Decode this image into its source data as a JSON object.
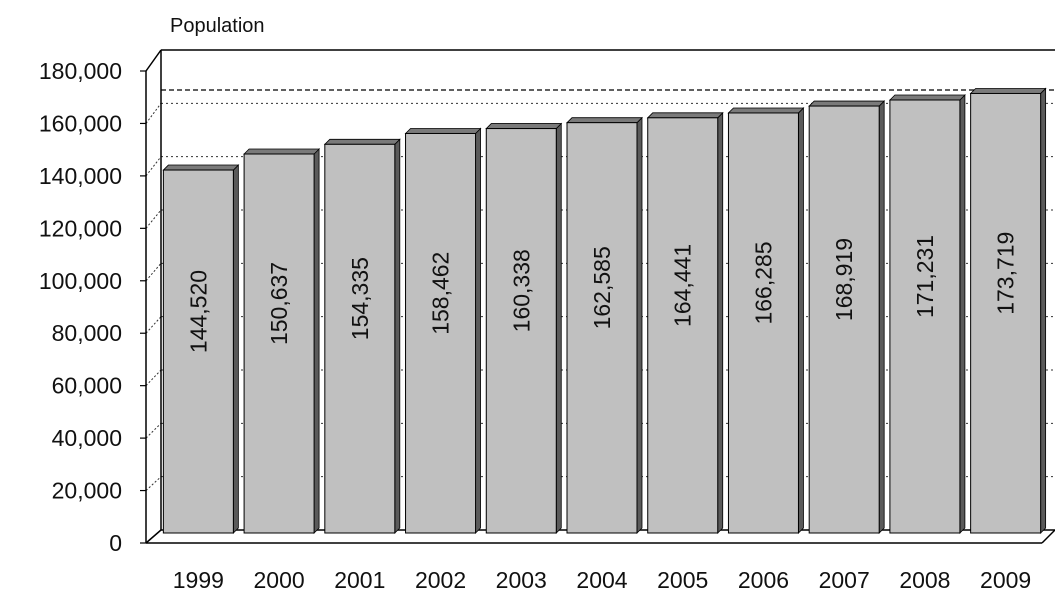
{
  "chart_data": {
    "type": "bar",
    "title": "",
    "xlabel": "",
    "ylabel": "Population",
    "categories": [
      "1999",
      "2000",
      "2001",
      "2002",
      "2003",
      "2004",
      "2005",
      "2006",
      "2007",
      "2008",
      "2009"
    ],
    "values": [
      144520,
      150637,
      154335,
      158462,
      160338,
      162585,
      164441,
      166285,
      168919,
      171231,
      173719
    ],
    "data_labels": [
      "144,520",
      "150,637",
      "154,335",
      "158,462",
      "160,338",
      "162,585",
      "164,441",
      "166,285",
      "168,919",
      "171,231",
      "173,719"
    ],
    "yticks": [
      0,
      20000,
      40000,
      60000,
      80000,
      100000,
      120000,
      140000,
      160000,
      180000
    ],
    "ytick_labels": [
      "0",
      "20,000",
      "40,000",
      "60,000",
      "80,000",
      "100,000",
      "120,000",
      "140,000",
      "160,000",
      "180,000"
    ],
    "ylim": [
      0,
      180000
    ],
    "reference_line": 165000,
    "grid": true,
    "three_d": true,
    "colors": {
      "bar_face": "#c0c0c0",
      "bar_side": "#5a5a5a",
      "bar_top": "#7a7a7a",
      "grid": "#333333",
      "axis": "#000000"
    }
  }
}
